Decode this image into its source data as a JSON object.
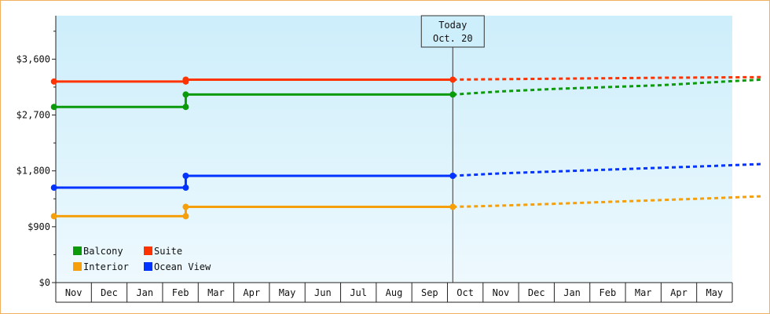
{
  "chart_data": {
    "type": "line",
    "title": "",
    "xlabel": "",
    "ylabel": "",
    "ylim": [
      0,
      4300
    ],
    "y_ticks": [
      "$0",
      "$900",
      "$1,800",
      "$2,700",
      "$3,600"
    ],
    "y_tick_values": [
      0,
      900,
      1800,
      2700,
      3600
    ],
    "x_months": [
      "Nov",
      "Dec",
      "Jan",
      "Feb",
      "Mar",
      "Apr",
      "May",
      "Jun",
      "Jul",
      "Aug",
      "Sep",
      "Oct",
      "Nov",
      "Dec",
      "Jan",
      "Feb",
      "Mar",
      "Apr",
      "May"
    ],
    "today": {
      "label": "Today",
      "date": "Oct. 20",
      "x": 11.15
    },
    "background_gradient": [
      "#cdeefb",
      "#eef9fe"
    ],
    "grid": false,
    "legend_placement": "bottom-left",
    "series": [
      {
        "name": "Balcony",
        "color": "#0a9a0a",
        "actual": [
          [
            -0.05,
            2830
          ],
          [
            3.65,
            2830
          ],
          [
            3.65,
            3030
          ],
          [
            11.15,
            3030
          ]
        ],
        "forecast": [
          [
            11.15,
            3030
          ],
          [
            12.5,
            3080
          ],
          [
            14,
            3120
          ],
          [
            15.5,
            3150
          ],
          [
            17,
            3180
          ],
          [
            18.5,
            3230
          ],
          [
            19.8,
            3270
          ]
        ],
        "markers": [
          [
            -0.05,
            2830
          ],
          [
            3.65,
            2830
          ],
          [
            3.65,
            3030
          ],
          [
            11.15,
            3030
          ]
        ]
      },
      {
        "name": "Suite",
        "color": "#ff3300",
        "actual": [
          [
            -0.05,
            3240
          ],
          [
            3.65,
            3240
          ],
          [
            3.65,
            3270
          ],
          [
            11.15,
            3270
          ]
        ],
        "forecast": [
          [
            11.15,
            3270
          ],
          [
            13,
            3280
          ],
          [
            15,
            3290
          ],
          [
            17,
            3300
          ],
          [
            19.8,
            3310
          ]
        ],
        "markers": [
          [
            -0.05,
            3240
          ],
          [
            3.65,
            3240
          ],
          [
            3.65,
            3270
          ],
          [
            11.15,
            3270
          ]
        ]
      },
      {
        "name": "Interior",
        "color": "#f5a00a",
        "actual": [
          [
            -0.05,
            1070
          ],
          [
            3.65,
            1070
          ],
          [
            3.65,
            1220
          ],
          [
            11.15,
            1220
          ]
        ],
        "forecast": [
          [
            11.15,
            1220
          ],
          [
            12.5,
            1240
          ],
          [
            14,
            1270
          ],
          [
            15.5,
            1300
          ],
          [
            17,
            1330
          ],
          [
            18.5,
            1360
          ],
          [
            19.8,
            1390
          ]
        ],
        "markers": [
          [
            -0.05,
            1070
          ],
          [
            3.65,
            1070
          ],
          [
            3.65,
            1220
          ],
          [
            11.15,
            1220
          ]
        ]
      },
      {
        "name": "Ocean View",
        "color": "#0033ff",
        "actual": [
          [
            -0.05,
            1530
          ],
          [
            3.65,
            1530
          ],
          [
            3.65,
            1720
          ],
          [
            11.15,
            1720
          ]
        ],
        "forecast": [
          [
            11.15,
            1720
          ],
          [
            12.5,
            1760
          ],
          [
            14,
            1790
          ],
          [
            15.5,
            1820
          ],
          [
            17,
            1850
          ],
          [
            18.5,
            1880
          ],
          [
            19.8,
            1910
          ]
        ],
        "markers": [
          [
            -0.05,
            1530
          ],
          [
            3.65,
            1530
          ],
          [
            3.65,
            1720
          ],
          [
            11.15,
            1720
          ]
        ]
      }
    ],
    "legend_order": [
      "Balcony",
      "Suite",
      "Interior",
      "Ocean View"
    ]
  }
}
